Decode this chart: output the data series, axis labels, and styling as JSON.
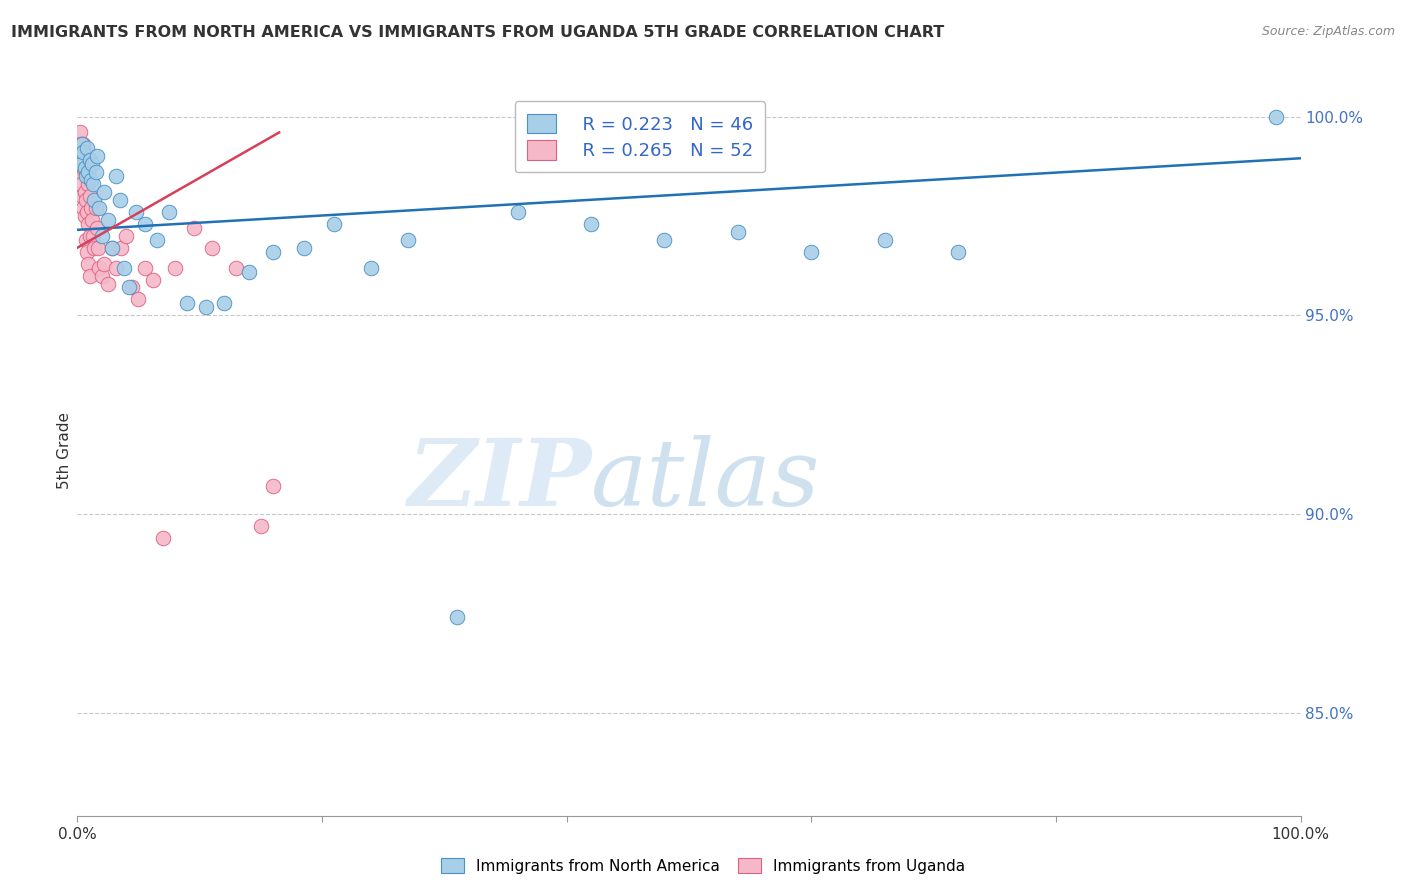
{
  "title": "IMMIGRANTS FROM NORTH AMERICA VS IMMIGRANTS FROM UGANDA 5TH GRADE CORRELATION CHART",
  "source": "Source: ZipAtlas.com",
  "ylabel": "5th Grade",
  "ylabel_right_ticks": [
    "100.0%",
    "95.0%",
    "90.0%",
    "85.0%"
  ],
  "ylabel_right_vals": [
    1.0,
    0.95,
    0.9,
    0.85
  ],
  "xlim": [
    0.0,
    1.0
  ],
  "ylim": [
    0.824,
    1.008
  ],
  "legend_blue_r": "R = 0.223",
  "legend_blue_n": "N = 46",
  "legend_pink_r": "R = 0.265",
  "legend_pink_n": "N = 52",
  "blue_color": "#a8cfe8",
  "pink_color": "#f4b8c8",
  "blue_edge_color": "#4a90c4",
  "pink_edge_color": "#e06080",
  "blue_line_color": "#2171b5",
  "pink_line_color": "#d6405a",
  "blue_scatter_x": [
    0.002,
    0.003,
    0.004,
    0.005,
    0.006,
    0.007,
    0.008,
    0.009,
    0.01,
    0.011,
    0.012,
    0.013,
    0.014,
    0.015,
    0.016,
    0.018,
    0.02,
    0.022,
    0.025,
    0.028,
    0.032,
    0.035,
    0.038,
    0.042,
    0.048,
    0.055,
    0.065,
    0.075,
    0.09,
    0.105,
    0.12,
    0.14,
    0.16,
    0.185,
    0.21,
    0.24,
    0.27,
    0.31,
    0.36,
    0.42,
    0.48,
    0.54,
    0.6,
    0.66,
    0.72,
    0.98
  ],
  "blue_scatter_y": [
    0.99,
    0.988,
    0.993,
    0.991,
    0.987,
    0.985,
    0.992,
    0.986,
    0.989,
    0.984,
    0.988,
    0.983,
    0.979,
    0.986,
    0.99,
    0.977,
    0.97,
    0.981,
    0.974,
    0.967,
    0.985,
    0.979,
    0.962,
    0.957,
    0.976,
    0.973,
    0.969,
    0.976,
    0.953,
    0.952,
    0.953,
    0.961,
    0.966,
    0.967,
    0.973,
    0.962,
    0.969,
    0.874,
    0.976,
    0.973,
    0.969,
    0.971,
    0.966,
    0.969,
    0.966,
    1.0
  ],
  "pink_scatter_x": [
    0.001,
    0.001,
    0.002,
    0.002,
    0.003,
    0.003,
    0.004,
    0.004,
    0.005,
    0.005,
    0.005,
    0.006,
    0.006,
    0.006,
    0.007,
    0.007,
    0.007,
    0.008,
    0.008,
    0.008,
    0.009,
    0.009,
    0.009,
    0.01,
    0.01,
    0.01,
    0.011,
    0.012,
    0.013,
    0.014,
    0.015,
    0.016,
    0.017,
    0.018,
    0.02,
    0.022,
    0.025,
    0.028,
    0.032,
    0.036,
    0.04,
    0.045,
    0.05,
    0.055,
    0.062,
    0.07,
    0.08,
    0.095,
    0.11,
    0.13,
    0.15,
    0.16
  ],
  "pink_scatter_y": [
    0.993,
    0.987,
    0.996,
    0.986,
    0.993,
    0.983,
    0.99,
    0.98,
    0.987,
    0.977,
    0.993,
    0.991,
    0.981,
    0.975,
    0.989,
    0.979,
    0.969,
    0.986,
    0.976,
    0.966,
    0.983,
    0.973,
    0.963,
    0.98,
    0.97,
    0.96,
    0.977,
    0.974,
    0.97,
    0.967,
    0.977,
    0.972,
    0.967,
    0.962,
    0.96,
    0.963,
    0.958,
    0.967,
    0.962,
    0.967,
    0.97,
    0.957,
    0.954,
    0.962,
    0.959,
    0.894,
    0.962,
    0.972,
    0.967,
    0.962,
    0.897,
    0.907
  ],
  "blue_line_x": [
    0.0,
    1.0
  ],
  "blue_line_y": [
    0.9715,
    0.9895
  ],
  "pink_line_x": [
    0.0,
    0.165
  ],
  "pink_line_y": [
    0.967,
    0.996
  ],
  "watermark_zip": "ZIP",
  "watermark_atlas": "atlas",
  "grid_color": "#c8c8c8",
  "tick_line_color": "#bbbbbb",
  "background_color": "#ffffff"
}
